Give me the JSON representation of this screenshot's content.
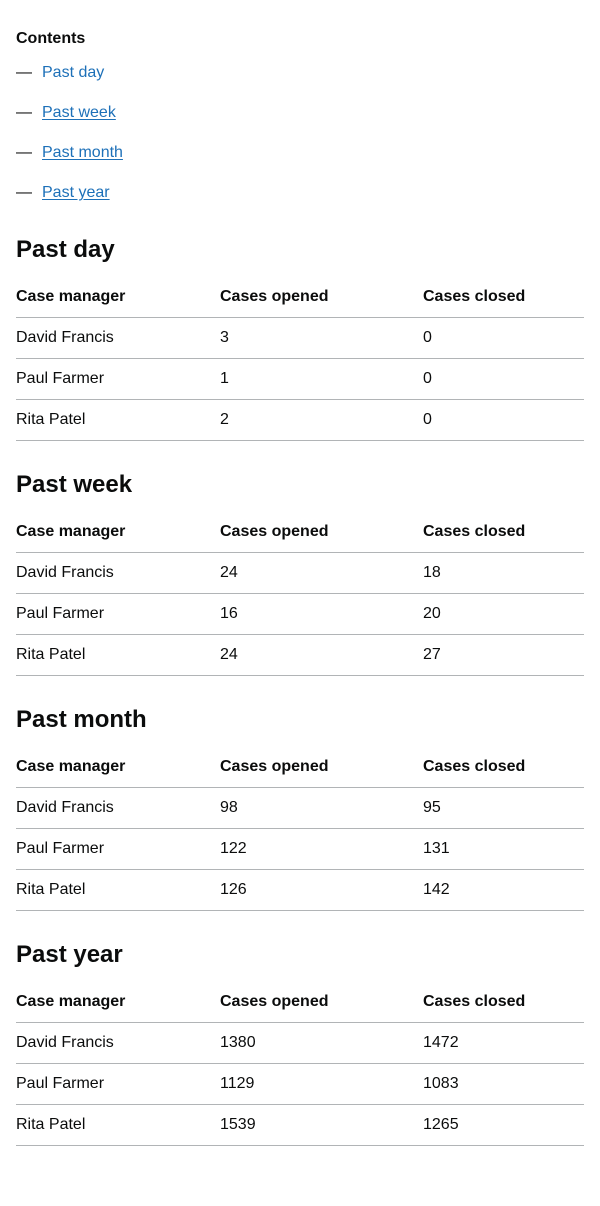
{
  "contents": {
    "title": "Contents",
    "dash": "—",
    "items": [
      {
        "label": "Past day"
      },
      {
        "label": "Past week"
      },
      {
        "label": "Past month"
      },
      {
        "label": "Past year"
      }
    ]
  },
  "table_headers": {
    "manager": "Case manager",
    "opened": "Cases opened",
    "closed": "Cases closed"
  },
  "sections": [
    {
      "title": "Past day",
      "rows": [
        {
          "manager": "David Francis",
          "opened": "3",
          "closed": "0"
        },
        {
          "manager": "Paul Farmer",
          "opened": "1",
          "closed": "0"
        },
        {
          "manager": "Rita Patel",
          "opened": "2",
          "closed": "0"
        }
      ]
    },
    {
      "title": "Past week",
      "rows": [
        {
          "manager": "David Francis",
          "opened": "24",
          "closed": "18"
        },
        {
          "manager": "Paul Farmer",
          "opened": "16",
          "closed": "20"
        },
        {
          "manager": "Rita Patel",
          "opened": "24",
          "closed": "27"
        }
      ]
    },
    {
      "title": "Past month",
      "rows": [
        {
          "manager": "David Francis",
          "opened": "98",
          "closed": "95"
        },
        {
          "manager": "Paul Farmer",
          "opened": "122",
          "closed": "131"
        },
        {
          "manager": "Rita Patel",
          "opened": "126",
          "closed": "142"
        }
      ]
    },
    {
      "title": "Past year",
      "rows": [
        {
          "manager": "David Francis",
          "opened": "1380",
          "closed": "1472"
        },
        {
          "manager": "Paul Farmer",
          "opened": "1129",
          "closed": "1083"
        },
        {
          "manager": "Rita Patel",
          "opened": "1539",
          "closed": "1265"
        }
      ]
    }
  ]
}
